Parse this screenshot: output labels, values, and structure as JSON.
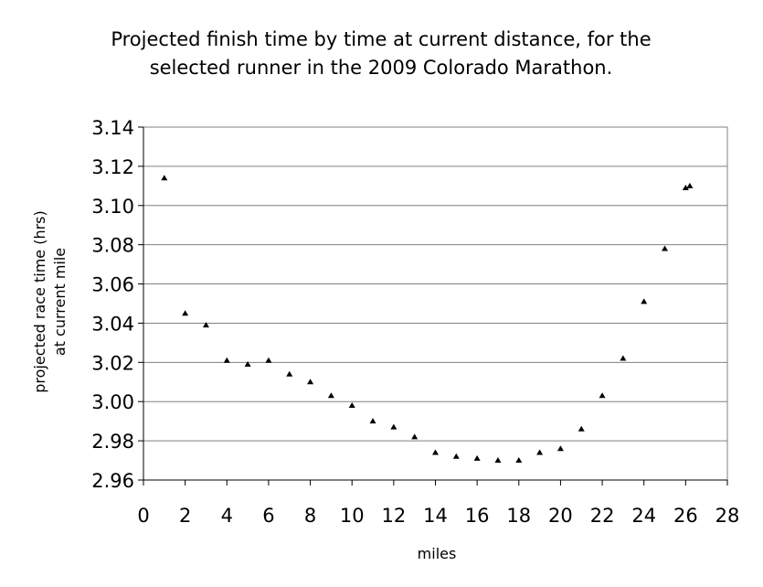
{
  "chart_data": {
    "type": "scatter",
    "title_lines": [
      "Projected finish time by time at current distance, for the",
      "selected runner in the 2009 Colorado Marathon."
    ],
    "xlabel": "miles",
    "ylabel_lines": [
      "projected race time (hrs)",
      "at current mile"
    ],
    "xlim": [
      0,
      28
    ],
    "ylim": [
      2.96,
      3.14
    ],
    "x_ticks": [
      "0",
      "2",
      "4",
      "6",
      "8",
      "10",
      "12",
      "14",
      "16",
      "18",
      "20",
      "22",
      "24",
      "26",
      "28"
    ],
    "y_ticks": [
      "2.96",
      "2.98",
      "3.00",
      "3.02",
      "3.04",
      "3.06",
      "3.08",
      "3.10",
      "3.12",
      "3.14"
    ],
    "grid": "horizontal",
    "marker": "triangle",
    "points": [
      {
        "x": 1,
        "y": 3.114
      },
      {
        "x": 2,
        "y": 3.045
      },
      {
        "x": 3,
        "y": 3.039
      },
      {
        "x": 4,
        "y": 3.021
      },
      {
        "x": 5,
        "y": 3.019
      },
      {
        "x": 6,
        "y": 3.021
      },
      {
        "x": 7,
        "y": 3.014
      },
      {
        "x": 8,
        "y": 3.01
      },
      {
        "x": 9,
        "y": 3.003
      },
      {
        "x": 10,
        "y": 2.998
      },
      {
        "x": 11,
        "y": 2.99
      },
      {
        "x": 12,
        "y": 2.987
      },
      {
        "x": 13,
        "y": 2.982
      },
      {
        "x": 14,
        "y": 2.974
      },
      {
        "x": 15,
        "y": 2.972
      },
      {
        "x": 16,
        "y": 2.971
      },
      {
        "x": 17,
        "y": 2.97
      },
      {
        "x": 18,
        "y": 2.97
      },
      {
        "x": 19,
        "y": 2.974
      },
      {
        "x": 20,
        "y": 2.976
      },
      {
        "x": 21,
        "y": 2.986
      },
      {
        "x": 22,
        "y": 3.003
      },
      {
        "x": 23,
        "y": 3.022
      },
      {
        "x": 24,
        "y": 3.051
      },
      {
        "x": 25,
        "y": 3.078
      },
      {
        "x": 26,
        "y": 3.109
      },
      {
        "x": 26.2,
        "y": 3.11
      }
    ]
  }
}
